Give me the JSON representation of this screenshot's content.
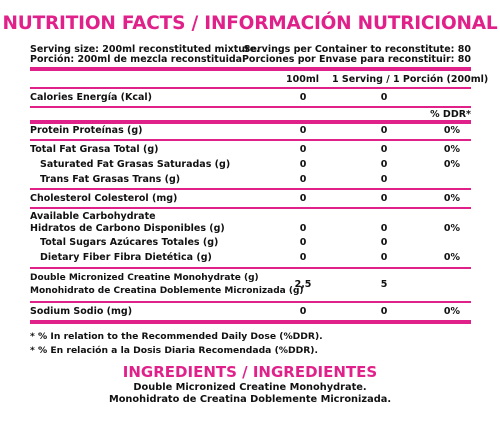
{
  "title": "NUTRITION FACTS / INFORMACIÓN NUTRICIONAL",
  "serving": {
    "size_en": "Serving size: 200ml reconstituted mixture.",
    "size_es": "Porción: 200ml de mezcla reconstituida.",
    "per_container_en": "Servings per Container to reconstitute: 80",
    "per_container_es": "Porciones por Envase para reconstituir: 80"
  },
  "columns": {
    "col1": "100ml",
    "col2": "1 Serving / 1 Porción (200ml)",
    "col3": "% DDR*"
  },
  "rows": {
    "calories": {
      "label": "Calories  Energía (Kcal)",
      "v1": "0",
      "v2": "0",
      "v3": ""
    },
    "protein": {
      "label": "Protein  Proteínas (g)",
      "v1": "0",
      "v2": "0",
      "v3": "0%"
    },
    "total_fat": {
      "label": "Total Fat  Grasa Total (g)",
      "v1": "0",
      "v2": "0",
      "v3": "0%"
    },
    "saturated_fat": {
      "label": "Saturated Fat  Grasas Saturadas (g)",
      "v1": "0",
      "v2": "0",
      "v3": "0%"
    },
    "trans_fat": {
      "label": "Trans Fat  Grasas Trans (g)",
      "v1": "0",
      "v2": "0",
      "v3": ""
    },
    "cholesterol": {
      "label": "Cholesterol  Colesterol (mg)",
      "v1": "0",
      "v2": "0",
      "v3": "0%"
    },
    "carbs": {
      "label_en": "Available Carbohydrate",
      "label_es": "Hidratos de Carbono Disponibles (g)",
      "v1": "0",
      "v2": "0",
      "v3": "0%"
    },
    "sugars": {
      "label": "Total Sugars  Azúcares Totales (g)",
      "v1": "0",
      "v2": "0",
      "v3": ""
    },
    "fiber": {
      "label": "Dietary Fiber  Fibra Dietética (g)",
      "v1": "0",
      "v2": "0",
      "v3": "0%"
    },
    "creatine": {
      "label_en": "Double Micronized Creatine Monohydrate (g)",
      "label_es": "Monohidrato de Creatina Doblemente Micronizada (g)",
      "v1": "2,5",
      "v2": "5",
      "v3": ""
    },
    "sodium": {
      "label": "Sodium  Sodio (mg)",
      "v1": "0",
      "v2": "0",
      "v3": "0%"
    }
  },
  "notes": {
    "en": "* % In relation to the Recommended Daily Dose (%DDR).",
    "es": "* % En relación a la Dosis Diaria Recomendada (%DDR)."
  },
  "ingredients": {
    "title": "INGREDIENTS / INGREDIENTES",
    "line_en": "Double Micronized Creatine Monohydrate.",
    "line_es": "Monohidrato de Creatina Doblemente Micronizada."
  },
  "colors": {
    "accent": "#e0218a",
    "text": "#111111"
  }
}
